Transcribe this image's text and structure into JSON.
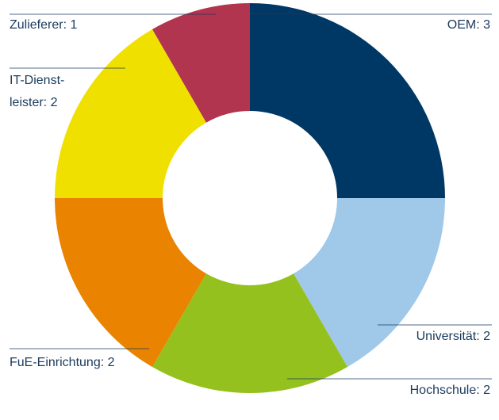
{
  "chart_data": {
    "type": "donut",
    "values": [
      3,
      2,
      2,
      2,
      2,
      1
    ],
    "value_labels": [
      "OEM: 3",
      "Universität: 2",
      "Hochschule: 2",
      "FuE-Einrichtung: 2",
      [
        "IT-Dienst-",
        "leister: 2"
      ],
      "Zulieferer: 1"
    ],
    "colors": [
      "#003865",
      "#a0c8e8",
      "#95c11f",
      "#e98300",
      "#f0e000",
      "#b1354f"
    ]
  }
}
